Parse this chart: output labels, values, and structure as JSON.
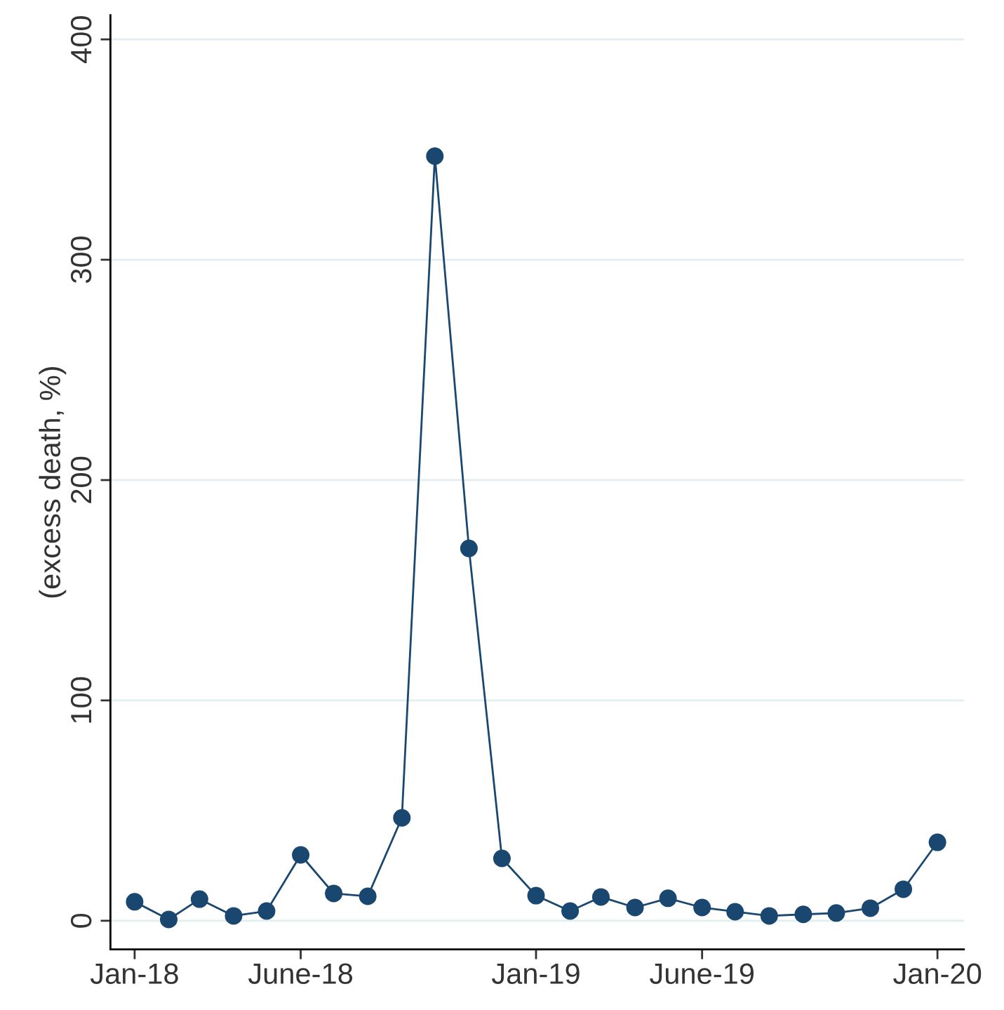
{
  "chart_data": {
    "type": "line",
    "ylabel": "(excess death, %)",
    "x": [
      "2018-01",
      "2018-02",
      "2018-03",
      "2018-04",
      "2018-05",
      "2018-06",
      "2018-07",
      "2018-08",
      "2018-09",
      "2018-10",
      "2018-11",
      "2018-12",
      "2019-01",
      "2019-02",
      "2019-03",
      "2019-04",
      "2019-05",
      "2019-06",
      "2019-07",
      "2019-08",
      "2019-09",
      "2019-10",
      "2019-11",
      "2019-12",
      "2020-01"
    ],
    "series": [
      {
        "color": "#1a476f",
        "values": [
          8.6,
          0.6,
          9.8,
          2.2,
          4.4,
          29.9,
          12.4,
          11.1,
          46.7,
          347,
          169,
          28.3,
          11.4,
          4.4,
          10.8,
          6.0,
          10.2,
          6.0,
          4.1,
          2.2,
          2.9,
          3.5,
          5.7,
          14.3,
          35.6
        ]
      }
    ],
    "xlim": [
      "2017-12-10",
      "2020-01-25"
    ],
    "xticks": [
      {
        "value": "2018-01",
        "label": "Jan-18"
      },
      {
        "value": "2018-06",
        "label": "June-18"
      },
      {
        "value": "2019-01",
        "label": "Jan-19"
      },
      {
        "value": "2019-06",
        "label": "June-19"
      },
      {
        "value": "2020-01",
        "label": "Jan-20"
      }
    ],
    "ylim": [
      -13,
      411
    ],
    "yticks": [
      0,
      100,
      200,
      300,
      400
    ],
    "grid": "y",
    "marker": "circle",
    "line_style": "solid"
  }
}
